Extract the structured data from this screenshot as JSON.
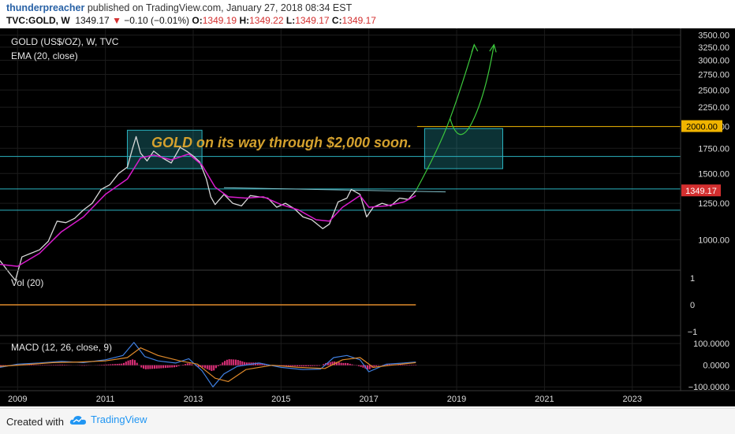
{
  "header": {
    "author": "thunderpreacher",
    "published_text": "published on TradingView.com, January 27, 2018 08:34 EST",
    "symbol": "TVC:GOLD, W",
    "last": "1349.17",
    "change": "−0.10 (−0.01%)",
    "open_label": "O:",
    "open": "1349.19",
    "high_label": "H:",
    "high": "1349.22",
    "low_label": "L:",
    "low": "1349.17",
    "close_label": "C:",
    "close": "1349.17"
  },
  "footer": {
    "created_with": "Created with",
    "brand": "TradingView"
  },
  "colors": {
    "background": "#000000",
    "grid": "#1c1c1c",
    "price": "#d8d8d8",
    "ema": "#d81bcc",
    "box": "#2bb3c0",
    "annotation": "#d4a12e",
    "arrow": "#3cc83c",
    "macd": "#3f7fe0",
    "signal": "#e08a2a",
    "hist": "#e0307a",
    "last_price_bg": "#d32f2f",
    "target_bg": "#f0b400"
  },
  "chart_data": [
    {
      "type": "line",
      "panel": "price",
      "title": "GOLD (US$/OZ), W, TVC",
      "indicator_label": "EMA (20, close)",
      "annotation": "GOLD on its way through $2,000 soon.",
      "xlim": [
        2008.6,
        2024.1
      ],
      "ylim": [
        830,
        3560
      ],
      "y_scale": "log",
      "y_ticks": [
        "3500.00",
        "3250.00",
        "3000.00",
        "2750.00",
        "2500.00",
        "2250.00",
        "2000.00",
        "1750.00",
        "1500.00",
        "1250.00",
        "1000.00"
      ],
      "x_ticks": [
        "2009",
        "2011",
        "2013",
        "2015",
        "2017",
        "2019",
        "2021",
        "2023"
      ],
      "last_price_label": "1349.17",
      "target_label": "2000.00",
      "series": [
        {
          "x": [
            2008.6,
            2008.8,
            2008.95,
            2009.1,
            2009.3,
            2009.5,
            2009.7,
            2009.9,
            2010.1,
            2010.3,
            2010.5,
            2010.7,
            2010.9,
            2011.1,
            2011.3,
            2011.5,
            2011.62,
            2011.7,
            2011.8,
            2011.95,
            2012.1,
            2012.3,
            2012.5,
            2012.7,
            2012.85,
            2013.0,
            2013.15,
            2013.3,
            2013.4,
            2013.5,
            2013.7,
            2013.9,
            2014.1,
            2014.3,
            2014.5,
            2014.7,
            2014.9,
            2015.1,
            2015.3,
            2015.5,
            2015.7,
            2015.95,
            2016.1,
            2016.3,
            2016.5,
            2016.6,
            2016.8,
            2016.95,
            2017.1,
            2017.3,
            2017.5,
            2017.7,
            2017.9,
            2018.07
          ],
          "values": [
            880,
            820,
            780,
            900,
            920,
            940,
            990,
            1120,
            1110,
            1140,
            1200,
            1250,
            1360,
            1400,
            1500,
            1560,
            1750,
            1880,
            1700,
            1620,
            1720,
            1650,
            1600,
            1760,
            1720,
            1670,
            1610,
            1450,
            1300,
            1240,
            1320,
            1250,
            1230,
            1310,
            1300,
            1290,
            1220,
            1250,
            1210,
            1150,
            1130,
            1070,
            1100,
            1260,
            1290,
            1360,
            1320,
            1150,
            1220,
            1250,
            1230,
            1290,
            1280,
            1349
          ]
        },
        {
          "x": [
            2008.6,
            2009.0,
            2009.5,
            2010.0,
            2010.5,
            2011.0,
            2011.5,
            2011.8,
            2012.1,
            2012.5,
            2012.9,
            2013.2,
            2013.5,
            2013.8,
            2014.2,
            2014.6,
            2015.0,
            2015.4,
            2015.8,
            2016.1,
            2016.4,
            2016.8,
            2017.0,
            2017.4,
            2017.8,
            2018.07
          ],
          "values": [
            860,
            850,
            920,
            1050,
            1150,
            1320,
            1450,
            1650,
            1680,
            1630,
            1690,
            1580,
            1380,
            1300,
            1290,
            1300,
            1240,
            1200,
            1130,
            1120,
            1220,
            1310,
            1220,
            1230,
            1260,
            1310
          ]
        }
      ],
      "boxes": [
        {
          "x": [
            2011.5,
            2013.2
          ],
          "y": [
            1545,
            1955
          ]
        },
        {
          "x": [
            2018.27,
            2020.05
          ],
          "y": [
            1545,
            1975
          ]
        }
      ],
      "levels": [
        {
          "y": 1665,
          "x": [
            2008.6,
            2024.1
          ]
        },
        {
          "y": 1365,
          "x": [
            2008.6,
            2024.1
          ]
        },
        {
          "y": 1198,
          "x": [
            2008.6,
            2024.1
          ]
        },
        {
          "y": 2000,
          "x": [
            2018.1,
            2024.1
          ]
        }
      ],
      "trendline": {
        "x": [
          2013.7,
          2018.75
        ],
        "y": [
          1375,
          1340
        ]
      }
    },
    {
      "type": "line",
      "panel": "volume",
      "title": "Vol (20)",
      "ylim": [
        -1,
        1
      ],
      "y_ticks": [
        "1",
        "0",
        "−1"
      ],
      "series": [
        {
          "x": [
            2008.6,
            2018.07
          ],
          "values": [
            0,
            0
          ]
        }
      ]
    },
    {
      "type": "line",
      "panel": "macd",
      "title": "MACD (12, 26, close, 9)",
      "ylim": [
        -110,
        115
      ],
      "y_ticks": [
        "100.0000",
        "0.0000",
        "−100.0000"
      ],
      "series": [
        {
          "x": [
            2008.6,
            2009.0,
            2009.5,
            2010.0,
            2010.5,
            2011.0,
            2011.4,
            2011.65,
            2011.9,
            2012.2,
            2012.6,
            2012.9,
            2013.2,
            2013.45,
            2013.7,
            2014.0,
            2014.5,
            2015.0,
            2015.5,
            2015.9,
            2016.2,
            2016.5,
            2016.8,
            2017.0,
            2017.4,
            2017.8,
            2018.07
          ],
          "values": [
            -10,
            5,
            10,
            18,
            12,
            25,
            45,
            105,
            40,
            20,
            10,
            30,
            -25,
            -100,
            -40,
            -5,
            10,
            -10,
            -20,
            -18,
            35,
            45,
            25,
            -30,
            5,
            10,
            15
          ]
        },
        {
          "x": [
            2008.6,
            2009.2,
            2009.8,
            2010.4,
            2011.0,
            2011.5,
            2011.8,
            2012.2,
            2012.7,
            2013.1,
            2013.5,
            2013.8,
            2014.2,
            2014.8,
            2015.4,
            2016.0,
            2016.4,
            2016.8,
            2017.1,
            2017.5,
            2018.07
          ],
          "values": [
            -5,
            3,
            12,
            15,
            20,
            35,
            80,
            45,
            20,
            5,
            -60,
            -75,
            -20,
            0,
            -10,
            -15,
            25,
            35,
            -10,
            0,
            12
          ]
        }
      ]
    }
  ]
}
